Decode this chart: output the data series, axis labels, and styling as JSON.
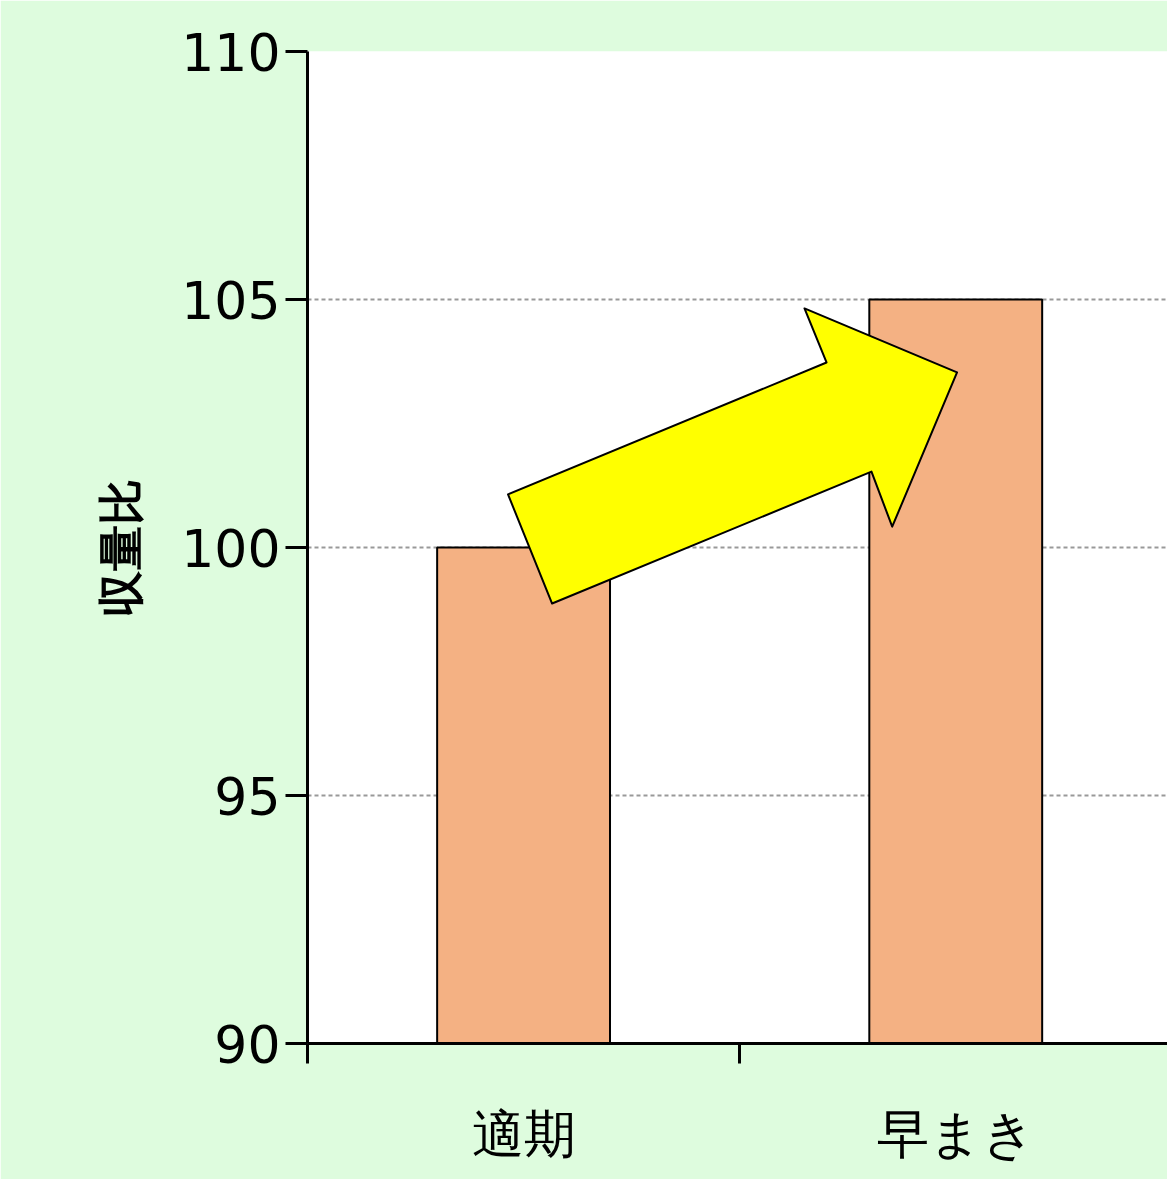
{
  "chart_data": {
    "type": "bar",
    "categories": [
      "適期",
      "早まき"
    ],
    "values": [
      100,
      105
    ],
    "color": "#f4b183",
    "ylabel": "収量比",
    "ylim": [
      90,
      110
    ],
    "yticks": [
      90,
      95,
      100,
      105,
      110
    ],
    "grid": "y"
  }
}
